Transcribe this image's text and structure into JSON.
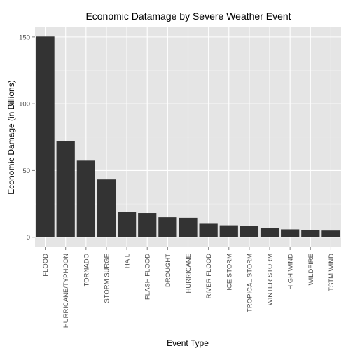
{
  "chart_data": {
    "type": "bar",
    "title": "Economic Datamage by Severe Weather Event",
    "xlabel": "Event Type",
    "ylabel": "Economic Damage (in Billions)",
    "categories": [
      "FLOOD",
      "HURRICANE/TYPHOON",
      "TORNADO",
      "STORM SURGE",
      "HAIL",
      "FLASH FLOOD",
      "DROUGHT",
      "HURRICANE",
      "RIVER FLOOD",
      "ICE STORM",
      "TROPICAL STORM",
      "WINTER STORM",
      "HIGH WIND",
      "WILDFIRE",
      "TSTM WIND"
    ],
    "values": [
      150.3,
      71.9,
      57.4,
      43.3,
      18.8,
      18.2,
      15.0,
      14.6,
      10.1,
      8.97,
      8.4,
      6.7,
      5.9,
      5.1,
      5.0
    ],
    "yticks": [
      0,
      50,
      100,
      150
    ],
    "ylim": [
      -7.5,
      157.8
    ],
    "grid": true,
    "colors": {
      "panel": "#e5e5e5",
      "grid_major": "#ffffff",
      "grid_minor": "#f2f2f2",
      "bar": "#333333"
    }
  }
}
